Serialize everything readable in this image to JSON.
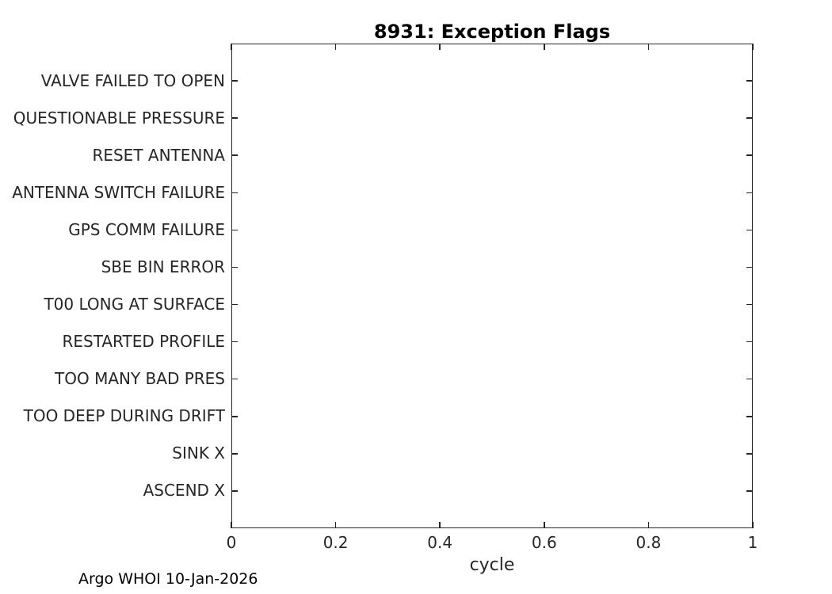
{
  "chart_data": {
    "type": "scatter",
    "title": "8931: Exception Flags",
    "xlabel": "cycle",
    "ylabel": "",
    "categories": [
      "VALVE FAILED TO OPEN",
      "QUESTIONABLE PRESSURE",
      "RESET ANTENNA",
      "ANTENNA SWITCH FAILURE",
      "GPS COMM FAILURE",
      "SBE BIN ERROR",
      "T00 LONG AT SURFACE",
      "RESTARTED PROFILE",
      "TOO MANY BAD PRES",
      "TOO DEEP DURING DRIFT",
      "SINK X",
      "ASCEND X"
    ],
    "x_tick_labels": [
      "0",
      "0.2",
      "0.4",
      "0.6",
      "0.8",
      "1"
    ],
    "x_tick_values": [
      0,
      0.2,
      0.4,
      0.6,
      0.8,
      1
    ],
    "xlim": [
      0,
      1
    ],
    "series": [],
    "grid": false,
    "legend_position": "none",
    "box": true,
    "tick_direction": "in",
    "footer": "Argo WHOI 10-Jan-2026",
    "colors": {
      "axis": "#262626",
      "text": "#262626",
      "title": "#000000",
      "background": "#ffffff"
    }
  }
}
